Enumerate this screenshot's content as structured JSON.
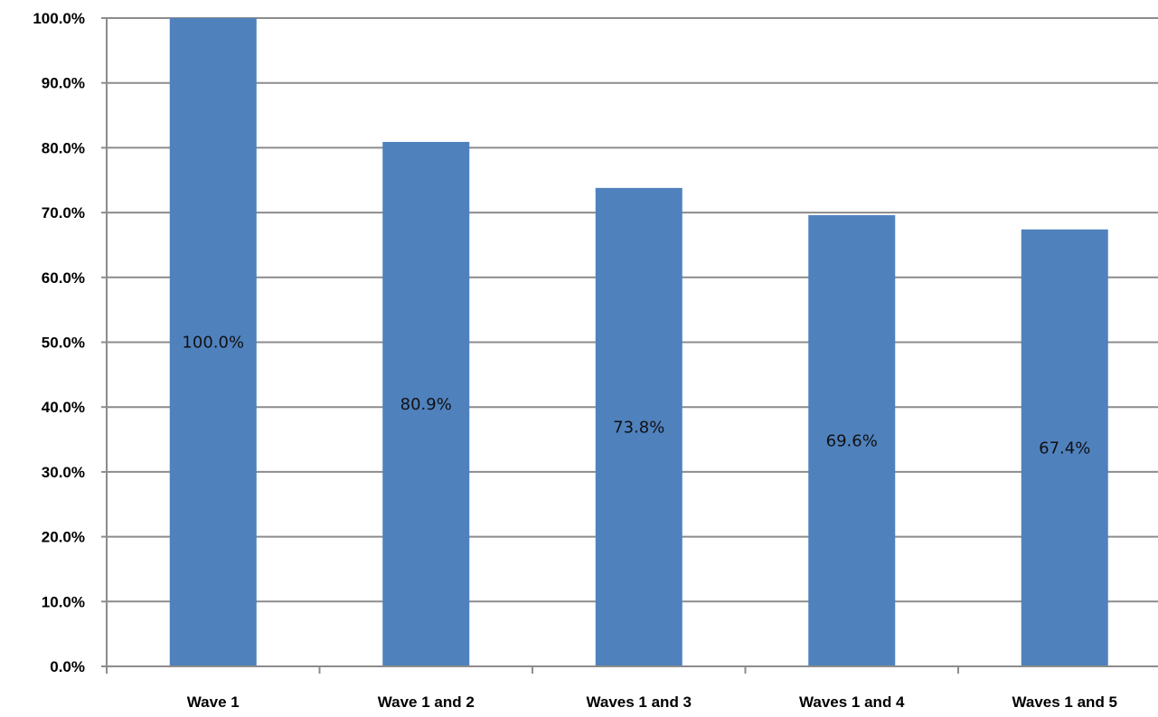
{
  "chart_data": {
    "type": "bar",
    "categories": [
      "Wave 1",
      "Wave 1 and 2",
      "Waves 1 and 3",
      "Waves 1 and 4",
      "Waves 1 and 5"
    ],
    "values": [
      100.0,
      80.9,
      73.8,
      69.6,
      67.4
    ],
    "data_labels": [
      "100.0%",
      "80.9%",
      "73.8%",
      "69.6%",
      "67.4%"
    ],
    "ylim": [
      0,
      100
    ],
    "yticks": [
      0,
      10,
      20,
      30,
      40,
      50,
      60,
      70,
      80,
      90,
      100
    ],
    "ytick_labels": [
      "0.0%",
      "10.0%",
      "20.0%",
      "30.0%",
      "40.0%",
      "50.0%",
      "60.0%",
      "70.0%",
      "80.0%",
      "90.0%",
      "100.0%"
    ],
    "title": "",
    "xlabel": "",
    "ylabel": "",
    "grid": true,
    "legend": "none",
    "bar_color": "#4f81bd"
  }
}
